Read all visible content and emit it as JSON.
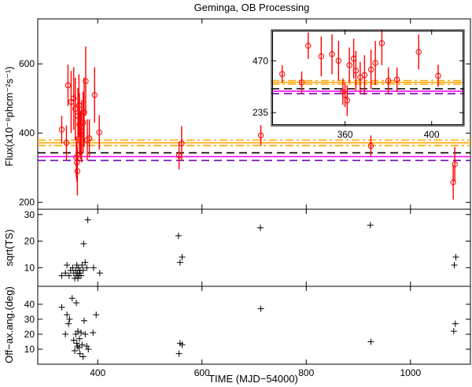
{
  "chart_data": [
    {
      "type": "scatter",
      "panel": "flux",
      "title": "Geminga, OB Processing",
      "ylabel": "Flux(x10⁻⁸phcm⁻²s⁻¹)",
      "xlabel": "",
      "xlim": [
        285,
        1115
      ],
      "ylim": [
        180,
        730
      ],
      "yticks": [
        200,
        400,
        600
      ],
      "points": [
        [
          331,
          410,
          40
        ],
        [
          340,
          372,
          50
        ],
        [
          343,
          538,
          60
        ],
        [
          349,
          490,
          90
        ],
        [
          354,
          500,
          90
        ],
        [
          357,
          470,
          90
        ],
        [
          359,
          330,
          60
        ],
        [
          360,
          315,
          55
        ],
        [
          361,
          290,
          70
        ],
        [
          362,
          450,
          80
        ],
        [
          364,
          480,
          90
        ],
        [
          365,
          425,
          90
        ],
        [
          367,
          395,
          70
        ],
        [
          369,
          405,
          90
        ],
        [
          372,
          430,
          90
        ],
        [
          374,
          460,
          100
        ],
        [
          377,
          550,
          100
        ],
        [
          380,
          380,
          60
        ],
        [
          384,
          385,
          55
        ],
        [
          394,
          510,
          80
        ],
        [
          403,
          402,
          50
        ],
        [
          556,
          335,
          40
        ],
        [
          561,
          370,
          50
        ],
        [
          713,
          393,
          30
        ],
        [
          924,
          363,
          30
        ],
        [
          1082,
          258,
          50
        ],
        [
          1085,
          310,
          50
        ]
      ],
      "reference_lines": [
        {
          "y": 380,
          "color": "#ffa500",
          "style": "dash-dot"
        },
        {
          "y": 372,
          "color": "#ffa500",
          "style": "solid"
        },
        {
          "y": 364,
          "color": "#ffa500",
          "style": "dash-dot"
        },
        {
          "y": 343,
          "color": "#000000",
          "style": "dashed"
        },
        {
          "y": 332,
          "color": "#ff00ff",
          "style": "solid"
        },
        {
          "y": 321,
          "color": "#6a0dad",
          "style": "dashed"
        }
      ]
    },
    {
      "type": "scatter",
      "panel": "flux-inset",
      "xlim": [
        326,
        415
      ],
      "ylim": [
        175,
        610
      ],
      "xticks": [
        360,
        400
      ],
      "yticks": [
        235,
        470
      ],
      "points": [
        [
          331,
          410,
          40
        ],
        [
          340,
          372,
          50
        ],
        [
          343,
          538,
          60
        ],
        [
          349,
          490,
          90
        ],
        [
          354,
          500,
          90
        ],
        [
          357,
          470,
          90
        ],
        [
          359,
          330,
          60
        ],
        [
          360,
          315,
          55
        ],
        [
          361,
          290,
          70
        ],
        [
          362,
          450,
          80
        ],
        [
          364,
          480,
          90
        ],
        [
          365,
          425,
          90
        ],
        [
          367,
          395,
          70
        ],
        [
          369,
          405,
          90
        ],
        [
          372,
          430,
          90
        ],
        [
          374,
          460,
          100
        ],
        [
          377,
          550,
          100
        ],
        [
          380,
          380,
          60
        ],
        [
          384,
          385,
          55
        ],
        [
          394,
          510,
          80
        ],
        [
          403,
          402,
          50
        ]
      ]
    },
    {
      "type": "scatter",
      "panel": "sqrt-ts",
      "ylabel": "sqrt(TS)",
      "xlim": [
        285,
        1115
      ],
      "ylim": [
        3,
        32
      ],
      "yticks": [
        10,
        20,
        30
      ],
      "points": [
        [
          331,
          7
        ],
        [
          338,
          8
        ],
        [
          341,
          11
        ],
        [
          345,
          7
        ],
        [
          348,
          9
        ],
        [
          352,
          10
        ],
        [
          354,
          8
        ],
        [
          356,
          6
        ],
        [
          358,
          9
        ],
        [
          359,
          7
        ],
        [
          360,
          11
        ],
        [
          361,
          8
        ],
        [
          362,
          6
        ],
        [
          363,
          10
        ],
        [
          364,
          7
        ],
        [
          365,
          8
        ],
        [
          366,
          9
        ],
        [
          368,
          7
        ],
        [
          370,
          11
        ],
        [
          372,
          9
        ],
        [
          373,
          19
        ],
        [
          376,
          12
        ],
        [
          379,
          10
        ],
        [
          381,
          28
        ],
        [
          392,
          10
        ],
        [
          404,
          8
        ],
        [
          555,
          22
        ],
        [
          558,
          12
        ],
        [
          562,
          14
        ],
        [
          712,
          25
        ],
        [
          923,
          26
        ],
        [
          1084,
          11
        ],
        [
          1087,
          14
        ]
      ]
    },
    {
      "type": "scatter",
      "panel": "off-axis-angle",
      "ylabel": "Off−ax.ang.(deg)",
      "xlabel": "TIME (MJD−54000)",
      "xlim": [
        285,
        1115
      ],
      "ylim": [
        0,
        52
      ],
      "xticks": [
        400,
        600,
        800,
        1000
      ],
      "yticks": [
        10,
        20,
        30,
        40
      ],
      "points": [
        [
          331,
          38
        ],
        [
          338,
          20
        ],
        [
          341,
          33
        ],
        [
          344,
          27
        ],
        [
          346,
          30
        ],
        [
          351,
          44
        ],
        [
          354,
          16
        ],
        [
          356,
          9
        ],
        [
          358,
          20
        ],
        [
          359,
          41
        ],
        [
          360,
          14
        ],
        [
          361,
          12
        ],
        [
          362,
          22
        ],
        [
          364,
          11
        ],
        [
          365,
          17
        ],
        [
          366,
          7
        ],
        [
          368,
          21
        ],
        [
          370,
          13
        ],
        [
          372,
          5
        ],
        [
          374,
          29
        ],
        [
          376,
          20
        ],
        [
          379,
          12
        ],
        [
          382,
          10
        ],
        [
          391,
          21
        ],
        [
          397,
          33
        ],
        [
          556,
          7
        ],
        [
          558,
          14
        ],
        [
          562,
          13
        ],
        [
          713,
          37
        ],
        [
          924,
          15
        ],
        [
          1083,
          22
        ],
        [
          1086,
          27
        ]
      ]
    }
  ]
}
